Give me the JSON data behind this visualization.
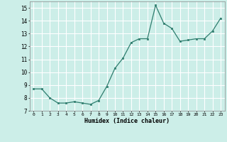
{
  "x": [
    0,
    1,
    2,
    3,
    4,
    5,
    6,
    7,
    8,
    9,
    10,
    11,
    12,
    13,
    14,
    15,
    16,
    17,
    18,
    19,
    20,
    21,
    22,
    23
  ],
  "y": [
    8.7,
    8.7,
    8.0,
    7.6,
    7.6,
    7.7,
    7.6,
    7.5,
    7.8,
    8.9,
    10.3,
    11.1,
    12.3,
    12.6,
    12.6,
    15.2,
    13.8,
    13.4,
    12.4,
    12.5,
    12.6,
    12.6,
    13.2,
    14.2
  ],
  "xlabel": "Humidex (Indice chaleur)",
  "ylim": [
    7,
    15.5
  ],
  "xlim": [
    -0.5,
    23.5
  ],
  "yticks": [
    7,
    8,
    9,
    10,
    11,
    12,
    13,
    14,
    15
  ],
  "xticks": [
    0,
    1,
    2,
    3,
    4,
    5,
    6,
    7,
    8,
    9,
    10,
    11,
    12,
    13,
    14,
    15,
    16,
    17,
    18,
    19,
    20,
    21,
    22,
    23
  ],
  "line_color": "#2e7d6e",
  "marker_color": "#2e7d6e",
  "bg_color": "#cceee8",
  "grid_color": "#ffffff"
}
